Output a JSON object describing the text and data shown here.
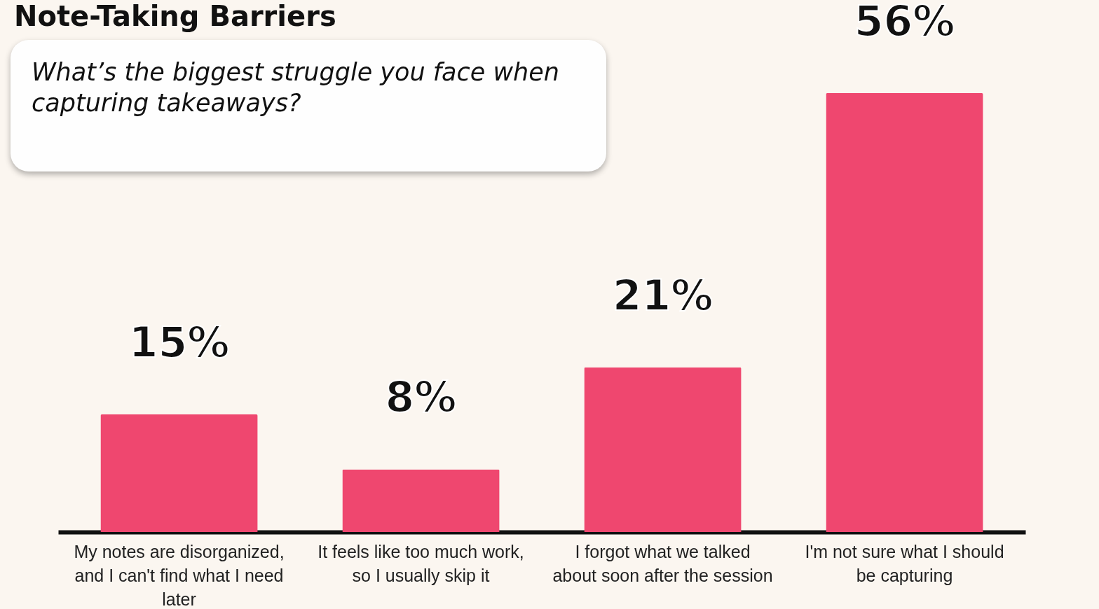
{
  "chart_data": {
    "type": "bar",
    "title": "Note-Taking Barriers",
    "subtitle": "What’s the biggest struggle you face when capturing takeaways?",
    "categories": [
      "My notes are disorganized, and I can't find what I need later",
      "It feels like too much work, so I usually skip it",
      "I forgot what we talked about soon after the session",
      "I'm not sure what I should be capturing"
    ],
    "values": [
      15,
      8,
      21,
      56
    ],
    "value_labels": [
      "15%",
      "8%",
      "21%",
      "56%"
    ],
    "color": "#ef476f"
  }
}
